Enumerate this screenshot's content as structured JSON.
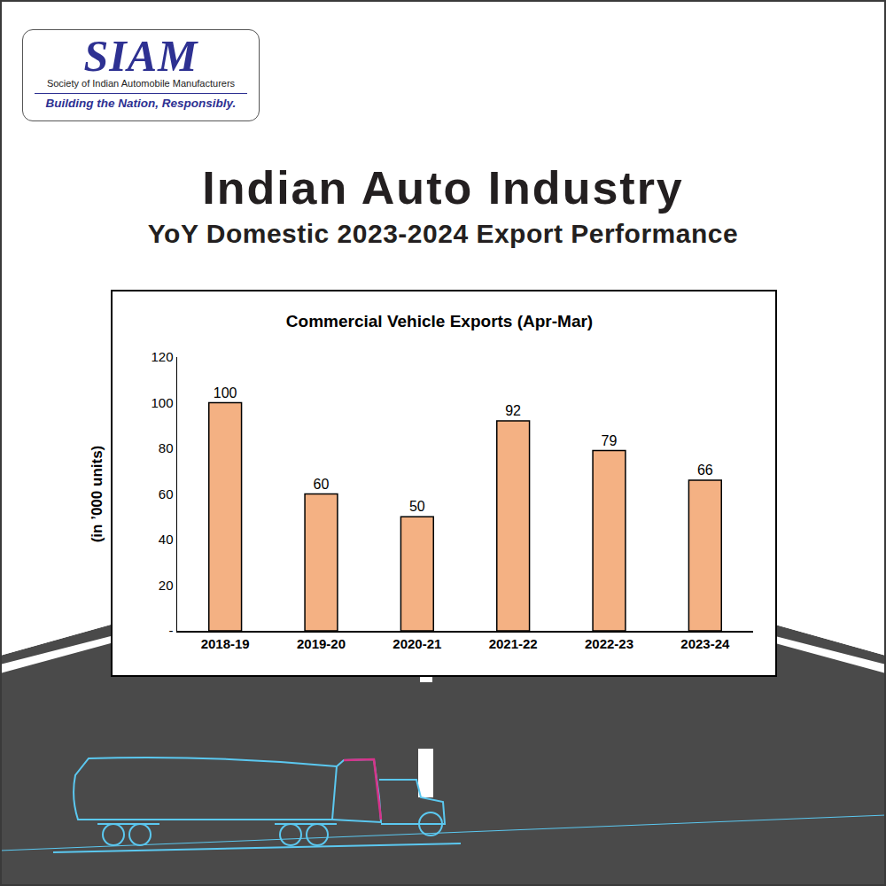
{
  "page": {
    "logo": {
      "name": "SIAM",
      "full_name": "Society of Indian Automobile Manufacturers",
      "tagline": "Building the Nation, Responsibly."
    },
    "title": "Indian Auto Industry",
    "subtitle": "YoY Domestic 2023-2024 Export Performance"
  },
  "chart_data": {
    "type": "bar",
    "title": "Commercial Vehicle Exports (Apr-Mar)",
    "y_label": "(in ’000 units)",
    "categories": [
      "2018-19",
      "2019-20",
      "2020-21",
      "2021-22",
      "2022-23",
      "2023-24"
    ],
    "values": [
      100,
      60,
      50,
      92,
      79,
      66
    ],
    "color": "#f4b183",
    "ylim": [
      0,
      120
    ],
    "yticks": [
      {
        "value": 0,
        "label": "-"
      },
      20,
      40,
      60,
      80,
      100,
      120
    ],
    "grid": false,
    "data_labels": true
  }
}
